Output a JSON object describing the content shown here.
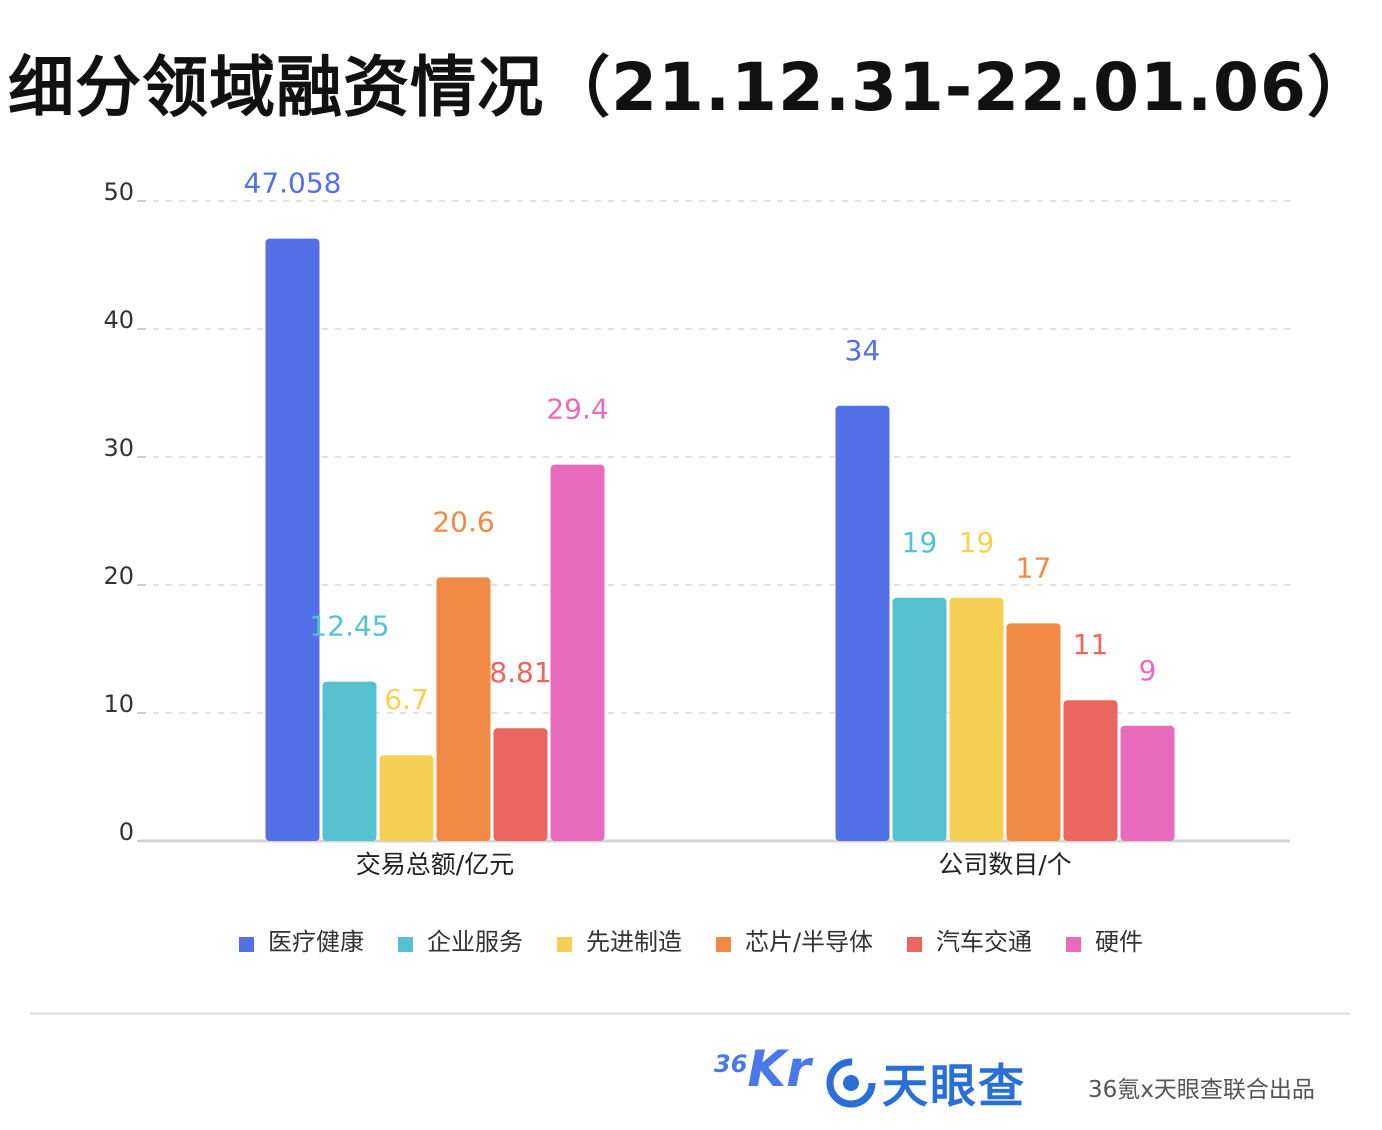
{
  "title": "细分领域融资情况（21.12.31-22.01.06）",
  "chart_data": {
    "type": "bar",
    "categories": [
      "交易总额/亿元",
      "公司数目/个"
    ],
    "series": [
      {
        "name": "医疗健康",
        "values": [
          47.058,
          34
        ],
        "labels": [
          "47.058",
          "34"
        ],
        "color": "#5470e6"
      },
      {
        "name": "企业服务",
        "values": [
          12.45,
          19
        ],
        "labels": [
          "12.45",
          "19"
        ],
        "color": "#56c2d0"
      },
      {
        "name": "先进制造",
        "values": [
          6.7,
          19
        ],
        "labels": [
          "6.7",
          "19"
        ],
        "color": "#f6d055"
      },
      {
        "name": "芯片/半导体",
        "values": [
          20.6,
          17
        ],
        "labels": [
          "20.6",
          "17"
        ],
        "color": "#f08a44"
      },
      {
        "name": "汽车交通",
        "values": [
          8.81,
          11
        ],
        "labels": [
          "8.81",
          "11"
        ],
        "color": "#ea665f"
      },
      {
        "name": "硬件",
        "values": [
          29.4,
          9
        ],
        "labels": [
          "29.4",
          "9"
        ],
        "color": "#e86bbd"
      }
    ],
    "ylim": [
      0,
      50
    ],
    "yticks": [
      0,
      10,
      20,
      30,
      40,
      50
    ],
    "grid": true,
    "legend_position": "bottom"
  },
  "footer": {
    "logo_36_num": "36",
    "logo_36_kr": "Kr",
    "logo_tyc": "天眼查",
    "source": "36氪x天眼查联合出品"
  }
}
